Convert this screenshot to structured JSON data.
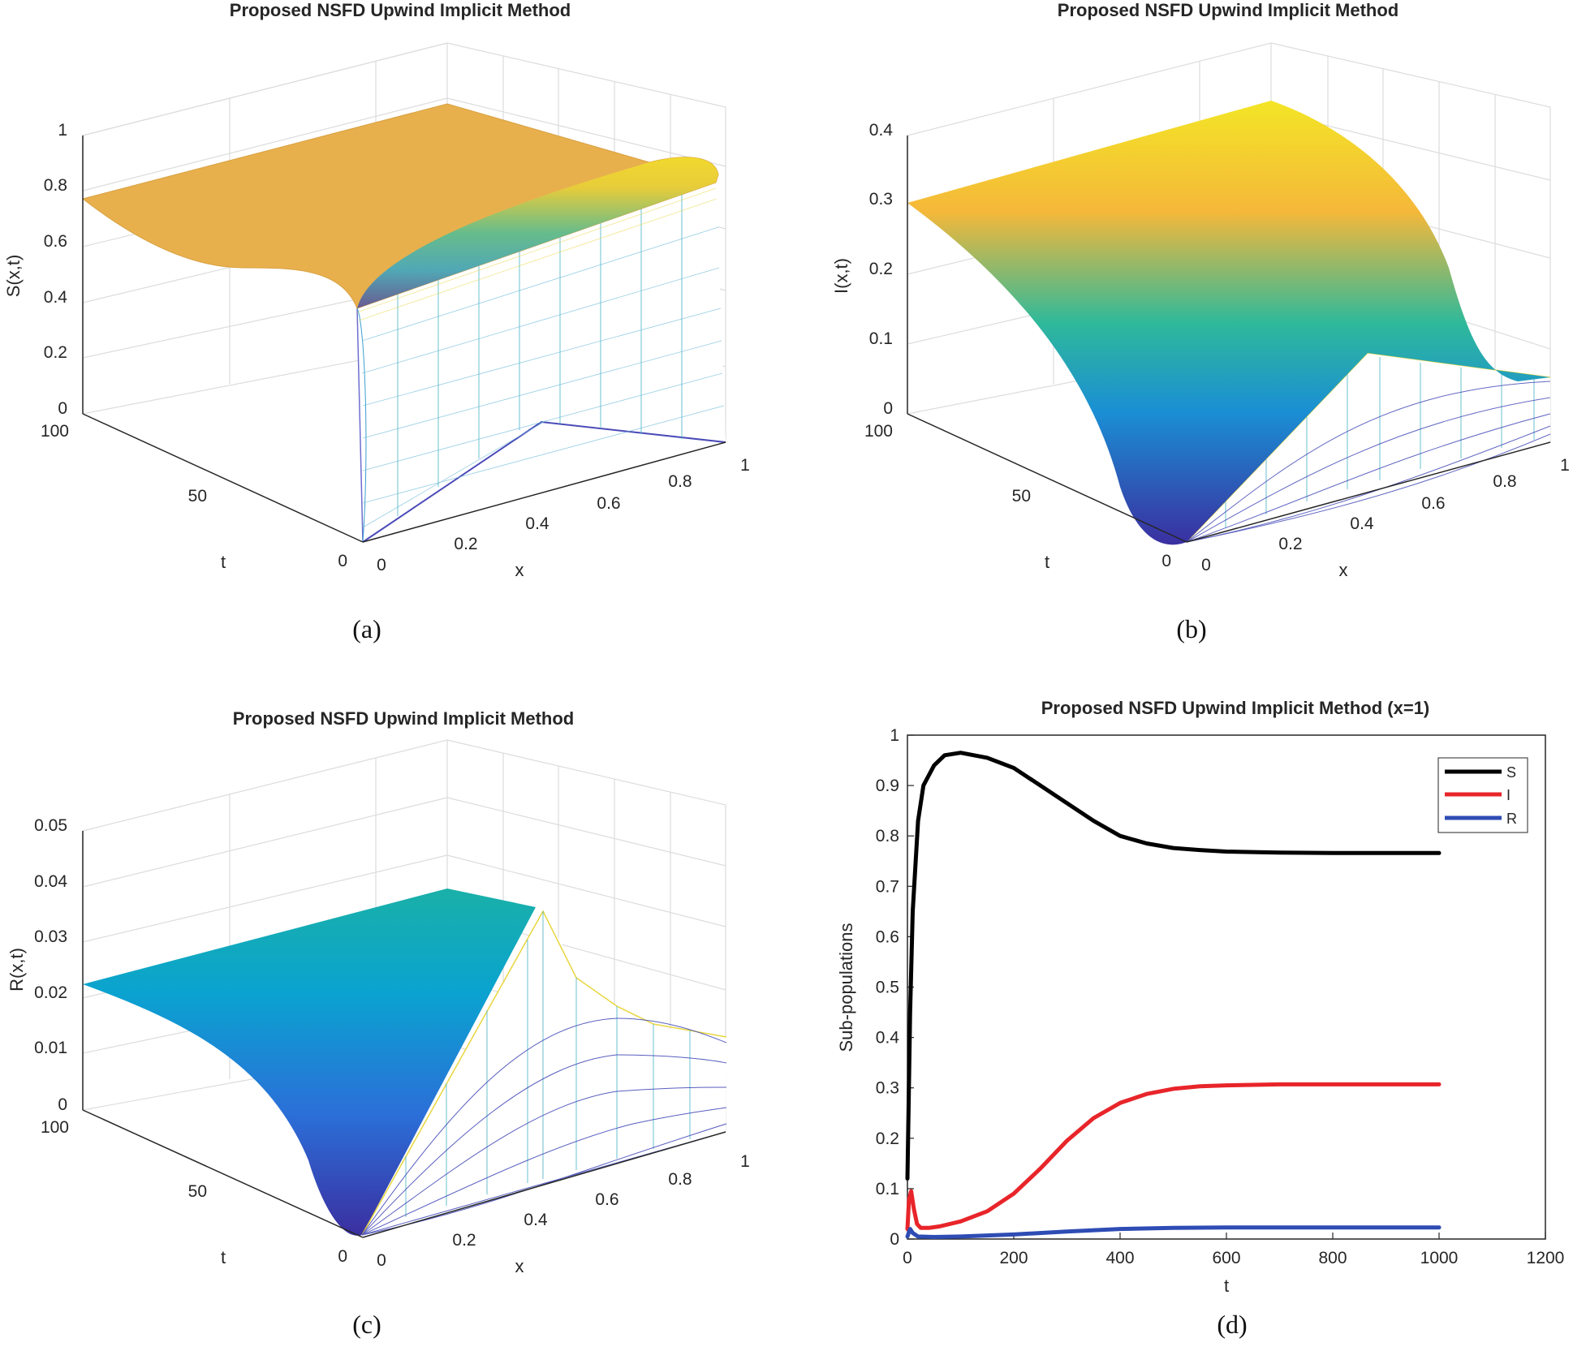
{
  "chart_data": [
    {
      "panel": "a",
      "type": "surface",
      "title": "Proposed NSFD Upwind Implicit Method",
      "xlabel": "x",
      "ylabel": "t",
      "zlabel": "S(x,t)",
      "x_ticks": [
        "0",
        "0.2",
        "0.4",
        "0.6",
        "0.8",
        "1"
      ],
      "t_ticks": [
        "0",
        "50",
        "100"
      ],
      "z_ticks": [
        "0",
        "0.2",
        "0.4",
        "0.6",
        "0.8",
        "1"
      ],
      "xlim": [
        0,
        1
      ],
      "tlim": [
        0,
        100
      ],
      "zlim": [
        0,
        1
      ],
      "colormap": "parula",
      "surface_level": 0.75,
      "caption": "(a)"
    },
    {
      "panel": "b",
      "type": "surface",
      "title": "Proposed NSFD Upwind Implicit Method",
      "xlabel": "x",
      "ylabel": "t",
      "zlabel": "I(x,t)",
      "x_ticks": [
        "0",
        "0.2",
        "0.4",
        "0.6",
        "0.8",
        "1"
      ],
      "t_ticks": [
        "0",
        "50",
        "100"
      ],
      "z_ticks": [
        "0",
        "0.1",
        "0.2",
        "0.3",
        "0.4"
      ],
      "xlim": [
        0,
        1
      ],
      "tlim": [
        0,
        100
      ],
      "zlim": [
        0,
        0.4
      ],
      "colormap": "parula",
      "surface_level": 0.3,
      "caption": "(b)"
    },
    {
      "panel": "c",
      "type": "surface",
      "title": "Proposed NSFD Upwind Implicit Method",
      "xlabel": "x",
      "ylabel": "t",
      "zlabel": "R(x,t)",
      "x_ticks": [
        "0",
        "0.2",
        "0.4",
        "0.6",
        "0.8",
        "1"
      ],
      "t_ticks": [
        "0",
        "50",
        "100"
      ],
      "z_ticks": [
        "0",
        "0.01",
        "0.02",
        "0.03",
        "0.04",
        "0.05"
      ],
      "xlim": [
        0,
        1
      ],
      "tlim": [
        0,
        100
      ],
      "zlim": [
        0,
        0.05
      ],
      "colormap": "parula",
      "surface_level": 0.022,
      "caption": "(c)"
    },
    {
      "panel": "d",
      "type": "line",
      "title": "Proposed NSFD Upwind Implicit Method (x=1)",
      "xlabel": "t",
      "ylabel": "Sub-populations",
      "xlim": [
        0,
        1200
      ],
      "ylim": [
        0,
        1
      ],
      "x_ticks": [
        "0",
        "200",
        "400",
        "600",
        "800",
        "1000",
        "1200"
      ],
      "y_ticks": [
        "0",
        "0.1",
        "0.2",
        "0.3",
        "0.4",
        "0.5",
        "0.6",
        "0.7",
        "0.8",
        "0.9",
        "1"
      ],
      "legend_position": "top-right",
      "series": [
        {
          "name": "S",
          "color": "#000000",
          "x": [
            0,
            5,
            10,
            20,
            30,
            50,
            70,
            100,
            150,
            200,
            250,
            300,
            350,
            400,
            450,
            500,
            550,
            600,
            700,
            800,
            900,
            1000
          ],
          "y": [
            0.12,
            0.45,
            0.65,
            0.83,
            0.9,
            0.94,
            0.96,
            0.965,
            0.955,
            0.935,
            0.9,
            0.865,
            0.83,
            0.8,
            0.785,
            0.776,
            0.772,
            0.769,
            0.767,
            0.766,
            0.766,
            0.766
          ]
        },
        {
          "name": "I",
          "color": "#e8252a",
          "x": [
            0,
            3,
            7,
            12,
            18,
            25,
            40,
            60,
            100,
            150,
            200,
            250,
            300,
            350,
            400,
            450,
            500,
            550,
            600,
            700,
            800,
            900,
            1000
          ],
          "y": [
            0.02,
            0.08,
            0.095,
            0.06,
            0.03,
            0.022,
            0.022,
            0.025,
            0.035,
            0.055,
            0.09,
            0.14,
            0.195,
            0.24,
            0.27,
            0.288,
            0.298,
            0.303,
            0.305,
            0.307,
            0.307,
            0.307,
            0.307
          ]
        },
        {
          "name": "R",
          "color": "#2e4cb4",
          "x": [
            0,
            5,
            10,
            20,
            50,
            100,
            200,
            300,
            400,
            500,
            600,
            800,
            1000
          ],
          "y": [
            0.005,
            0.02,
            0.012,
            0.005,
            0.004,
            0.005,
            0.009,
            0.015,
            0.02,
            0.022,
            0.023,
            0.023,
            0.023
          ]
        }
      ],
      "caption": "(d)"
    }
  ]
}
